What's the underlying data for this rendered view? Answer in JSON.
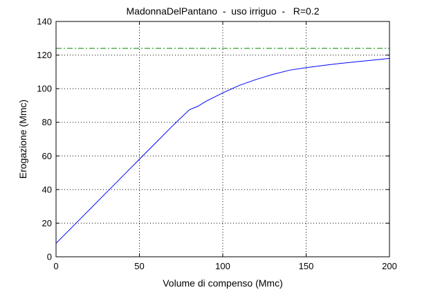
{
  "chart_data": {
    "type": "line",
    "title": "MadonnaDelPantano  -  uso irriguo  -   R=0.2",
    "xlabel": "Volume di compenso (Mmc)",
    "ylabel": "Erogazione (Mmc)",
    "xlim": [
      0,
      200
    ],
    "ylim": [
      0,
      140
    ],
    "xticks": [
      0,
      50,
      100,
      150,
      200
    ],
    "yticks": [
      0,
      20,
      40,
      60,
      80,
      100,
      120,
      140
    ],
    "xtick_labels": [
      "0",
      "50",
      "100",
      "150",
      "200"
    ],
    "ytick_labels": [
      "0",
      "20",
      "40",
      "60",
      "80",
      "100",
      "120",
      "140"
    ],
    "grid": true,
    "series": [
      {
        "color": "#0000ff",
        "style": "solid",
        "x": [
          0,
          10,
          20,
          30,
          40,
          50,
          60,
          70,
          80,
          85,
          90,
          100,
          110,
          120,
          130,
          140,
          150,
          160,
          170,
          180,
          190,
          200
        ],
        "y": [
          8,
          18,
          28,
          38,
          48,
          58,
          68,
          78,
          87.5,
          89.5,
          92.5,
          97.5,
          102,
          105.5,
          108.5,
          111,
          112.5,
          113.8,
          115,
          116,
          117,
          118
        ]
      },
      {
        "color": "#008000",
        "style": "dashdot",
        "x": [
          0,
          200
        ],
        "y": [
          124,
          124
        ]
      }
    ]
  }
}
